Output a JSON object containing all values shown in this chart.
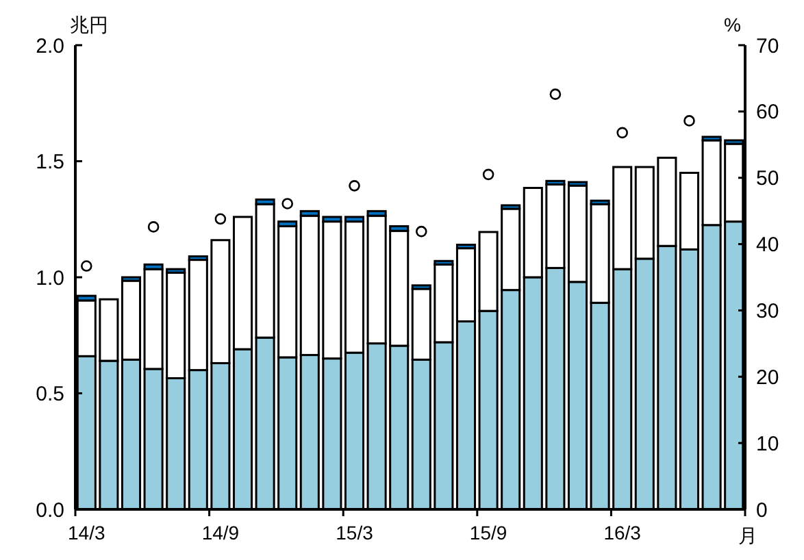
{
  "chart_data": {
    "type": "bar",
    "stacked": true,
    "ylabel": "兆円",
    "y2label": "%",
    "xlabel": "月",
    "categories": [
      "14/3",
      null,
      null,
      null,
      null,
      null,
      "14/9",
      null,
      null,
      null,
      null,
      null,
      "15/3",
      null,
      null,
      null,
      null,
      null,
      "15/9",
      null,
      null,
      null,
      null,
      null,
      "16/3",
      null,
      null,
      null,
      null,
      null
    ],
    "series": [
      {
        "color": "#96cddf",
        "values": [
          0.66,
          0.64,
          0.645,
          0.605,
          0.565,
          0.6,
          0.63,
          0.69,
          0.74,
          0.655,
          0.665,
          0.65,
          0.675,
          0.715,
          0.705,
          0.645,
          0.72,
          0.81,
          0.855,
          0.945,
          1.0,
          1.04,
          0.98,
          0.89,
          1.035,
          1.08,
          1.135,
          1.12,
          1.225,
          1.24
        ]
      },
      {
        "color": "#ffffff",
        "values": [
          0.24,
          0.265,
          0.34,
          0.43,
          0.455,
          0.475,
          0.53,
          0.57,
          0.575,
          0.565,
          0.6,
          0.59,
          0.565,
          0.55,
          0.495,
          0.305,
          0.335,
          0.315,
          0.34,
          0.35,
          0.385,
          0.36,
          0.415,
          0.425,
          0.44,
          0.395,
          0.38,
          0.33,
          0.365,
          0.335
        ]
      },
      {
        "color": "#0070c0",
        "values": [
          0.02,
          0,
          0.015,
          0.02,
          0.015,
          0.015,
          0,
          0,
          0.02,
          0.02,
          0.02,
          0.02,
          0.02,
          0.02,
          0.02,
          0.015,
          0.015,
          0.015,
          0,
          0.015,
          0,
          0.015,
          0.015,
          0.015,
          0,
          0,
          0,
          0,
          0.015,
          0.015
        ]
      },
      {
        "type": "scatter",
        "axis": "y2",
        "color": "#ffffff",
        "values": [
          36.7,
          null,
          null,
          42.6,
          null,
          null,
          43.8,
          null,
          null,
          46.1,
          null,
          null,
          48.8,
          null,
          null,
          41.9,
          null,
          null,
          50.5,
          null,
          null,
          62.6,
          null,
          null,
          56.8,
          null,
          null,
          58.6,
          null,
          null
        ]
      }
    ],
    "ylim": [
      0,
      2
    ],
    "yticks": [
      {
        "value": 0,
        "label": "0.0"
      },
      {
        "value": 0.5,
        "label": "0.5"
      },
      {
        "value": 1,
        "label": "1.0"
      },
      {
        "value": 1.5,
        "label": "1.5"
      },
      {
        "value": 2,
        "label": "2.0"
      }
    ],
    "y2lim": [
      0,
      70
    ],
    "y2ticks": [
      0,
      10,
      20,
      30,
      40,
      50,
      60,
      70
    ],
    "marker": "circle",
    "grid": false
  }
}
